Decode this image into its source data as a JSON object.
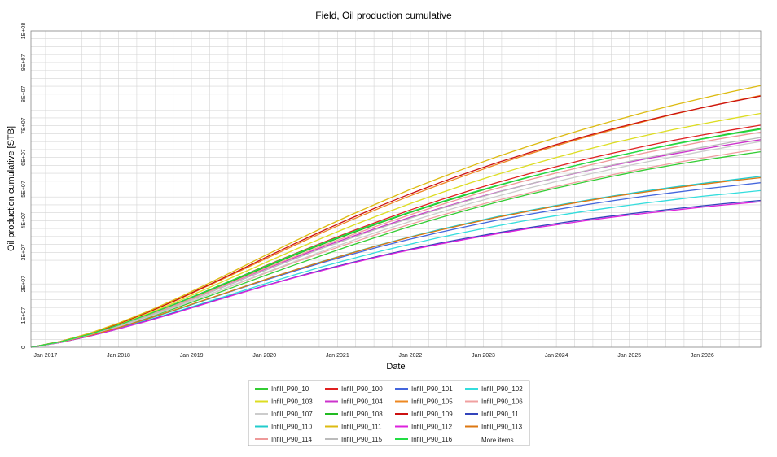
{
  "chart_data": {
    "type": "line",
    "title": "Field, Oil production cumulative",
    "xlabel": "Date",
    "ylabel": "Oil production cumulative [STB]",
    "x_range": [
      2016.8,
      2026.8
    ],
    "x_ticks": [
      "Jan 2017",
      "Jan 2018",
      "Jan 2019",
      "Jan 2020",
      "Jan 2021",
      "Jan 2022",
      "Jan 2023",
      "Jan 2024",
      "Jan 2025",
      "Jan 2026"
    ],
    "ylim": [
      0,
      100000000
    ],
    "y_ticks": [
      "0",
      "1E+07",
      "2E+07",
      "3E+07",
      "4E+07",
      "5E+07",
      "6E+07",
      "7E+07",
      "8E+07",
      "9E+07",
      "1E+08"
    ],
    "grid": true,
    "legend_position": "bottom-center",
    "legend_more": "More items...",
    "x": [
      2016.8,
      2017.2,
      2017.6,
      2018.0,
      2018.4,
      2018.8,
      2019.2,
      2019.6,
      2020.0,
      2020.4,
      2020.8,
      2021.2,
      2021.6,
      2022.0,
      2022.4,
      2022.8,
      2023.2,
      2023.6,
      2024.0,
      2024.4,
      2024.8,
      2025.2,
      2025.6,
      2026.0,
      2026.4,
      2026.8
    ],
    "series": [
      {
        "name": "Infill_P90_10",
        "color": "#33cc33",
        "values": [
          0,
          1.6,
          3.8,
          6.4,
          9.3,
          12.5,
          15.8,
          19.2,
          22.6,
          25.9,
          29.1,
          32.3,
          35.3,
          38.2,
          40.9,
          43.5,
          45.9,
          48.2,
          50.3,
          52.3,
          54.2,
          56.0,
          57.6,
          59.1,
          60.5,
          61.8
        ]
      },
      {
        "name": "Infill_P90_100",
        "color": "#e02020",
        "values": [
          0,
          1.7,
          4.1,
          7.0,
          10.3,
          13.9,
          17.7,
          21.6,
          25.6,
          29.4,
          33.1,
          36.7,
          40.1,
          43.4,
          46.5,
          49.4,
          52.1,
          54.7,
          57.1,
          59.4,
          61.5,
          63.5,
          65.4,
          67.1,
          68.7,
          70.2
        ]
      },
      {
        "name": "Infill_P90_101",
        "color": "#4466dd",
        "values": [
          0,
          1.6,
          3.7,
          6.2,
          9.0,
          11.9,
          15.0,
          18.1,
          21.1,
          24.0,
          26.8,
          29.4,
          31.9,
          34.2,
          36.3,
          38.3,
          40.2,
          41.9,
          43.5,
          45.0,
          46.4,
          47.7,
          48.9,
          50.0,
          51.0,
          52.0
        ]
      },
      {
        "name": "Infill_P90_102",
        "color": "#33dddd",
        "values": [
          0,
          1.5,
          3.5,
          5.9,
          8.5,
          11.3,
          14.2,
          17.1,
          20.0,
          22.8,
          25.5,
          28.0,
          30.4,
          32.6,
          34.7,
          36.6,
          38.4,
          40.1,
          41.6,
          43.0,
          44.3,
          45.5,
          46.6,
          47.7,
          48.6,
          49.5
        ]
      },
      {
        "name": "Infill_P90_103",
        "color": "#dddd22",
        "values": [
          0,
          1.7,
          4.2,
          7.2,
          10.6,
          14.4,
          18.4,
          22.5,
          26.6,
          30.7,
          34.6,
          38.4,
          42.0,
          45.4,
          48.7,
          51.8,
          54.7,
          57.4,
          60.0,
          62.4,
          64.7,
          66.8,
          68.8,
          70.6,
          72.3,
          73.9
        ]
      },
      {
        "name": "Infill_P90_104",
        "color": "#cc33cc",
        "values": [
          0,
          1.7,
          4.0,
          6.8,
          10.0,
          13.5,
          17.2,
          20.9,
          24.6,
          28.2,
          31.7,
          35.0,
          38.1,
          41.1,
          43.9,
          46.6,
          49.1,
          51.4,
          53.6,
          55.7,
          57.6,
          59.4,
          61.1,
          62.7,
          64.2,
          65.6
        ]
      },
      {
        "name": "Infill_P90_105",
        "color": "#ee8822",
        "values": [
          0,
          1.8,
          4.3,
          7.4,
          11.0,
          14.9,
          19.1,
          23.4,
          27.8,
          32.1,
          36.3,
          40.3,
          44.2,
          47.9,
          51.4,
          54.7,
          57.9,
          60.9,
          63.7,
          66.4,
          68.9,
          71.3,
          73.6,
          75.7,
          77.7,
          79.6
        ]
      },
      {
        "name": "Infill_P90_106",
        "color": "#f0a0a0",
        "values": [
          0,
          1.6,
          3.9,
          6.6,
          9.6,
          12.9,
          16.3,
          19.8,
          23.3,
          26.7,
          30.0,
          33.1,
          36.1,
          38.9,
          41.6,
          44.1,
          46.5,
          48.7,
          50.8,
          52.8,
          54.7,
          56.5,
          58.2,
          59.8,
          61.3,
          62.7
        ]
      },
      {
        "name": "Infill_P90_107",
        "color": "#cccccc",
        "values": [
          0,
          1.6,
          3.8,
          6.5,
          9.5,
          12.8,
          16.3,
          19.9,
          23.5,
          27.0,
          30.4,
          33.7,
          36.8,
          39.8,
          42.6,
          45.3,
          47.8,
          50.2,
          52.4,
          54.5,
          56.5,
          58.4,
          60.2,
          61.9,
          63.5,
          65.0
        ]
      },
      {
        "name": "Infill_P90_108",
        "color": "#22bb22",
        "values": [
          0,
          1.7,
          4.0,
          6.9,
          10.1,
          13.7,
          17.5,
          21.3,
          25.2,
          29.0,
          32.6,
          36.1,
          39.4,
          42.6,
          45.6,
          48.4,
          51.1,
          53.6,
          56.0,
          58.2,
          60.3,
          62.3,
          64.2,
          65.9,
          67.6,
          69.1
        ]
      },
      {
        "name": "Infill_P90_109",
        "color": "#cc1111",
        "values": [
          0,
          1.8,
          4.3,
          7.4,
          11.0,
          15.0,
          19.3,
          23.7,
          28.2,
          32.6,
          36.8,
          40.9,
          44.8,
          48.5,
          52.0,
          55.3,
          58.4,
          61.3,
          64.1,
          66.7,
          69.2,
          71.5,
          73.7,
          75.7,
          77.6,
          79.4
        ]
      },
      {
        "name": "Infill_P90_11",
        "color": "#3344bb",
        "values": [
          0,
          1.5,
          3.5,
          5.8,
          8.4,
          11.1,
          13.9,
          16.7,
          19.4,
          22.0,
          24.5,
          26.8,
          29.0,
          31.0,
          32.9,
          34.6,
          36.2,
          37.7,
          39.1,
          40.4,
          41.6,
          42.7,
          43.7,
          44.7,
          45.6,
          46.4
        ]
      },
      {
        "name": "Infill_P90_110",
        "color": "#22cccc",
        "values": [
          0,
          1.5,
          3.6,
          6.1,
          8.9,
          11.9,
          15.0,
          18.2,
          21.3,
          24.3,
          27.2,
          29.9,
          32.5,
          34.9,
          37.2,
          39.3,
          41.3,
          43.1,
          44.8,
          46.4,
          47.9,
          49.3,
          50.6,
          51.8,
          52.9,
          54.0
        ]
      },
      {
        "name": "Infill_P90_111",
        "color": "#ddbb11",
        "values": [
          0,
          1.8,
          4.4,
          7.6,
          11.3,
          15.4,
          19.8,
          24.3,
          28.9,
          33.4,
          37.8,
          42.0,
          46.0,
          49.9,
          53.5,
          57.0,
          60.3,
          63.4,
          66.3,
          69.1,
          71.7,
          74.2,
          76.5,
          78.7,
          80.8,
          82.7
        ]
      },
      {
        "name": "Infill_P90_112",
        "color": "#dd22dd",
        "values": [
          0,
          1.5,
          3.5,
          5.8,
          8.3,
          11.0,
          13.8,
          16.6,
          19.3,
          21.9,
          24.3,
          26.6,
          28.8,
          30.8,
          32.6,
          34.3,
          35.9,
          37.4,
          38.7,
          40.0,
          41.2,
          42.3,
          43.3,
          44.3,
          45.2,
          46.0
        ]
      },
      {
        "name": "Infill_P90_113",
        "color": "#dd7711",
        "values": [
          0,
          1.6,
          3.7,
          6.2,
          9.0,
          12.0,
          15.1,
          18.2,
          21.3,
          24.3,
          27.1,
          29.8,
          32.4,
          34.8,
          37.0,
          39.1,
          41.1,
          42.9,
          44.6,
          46.2,
          47.7,
          49.0,
          50.3,
          51.5,
          52.6,
          53.6
        ]
      },
      {
        "name": "Infill_P90_114",
        "color": "#ee9999",
        "values": [
          0,
          1.7,
          4.0,
          6.8,
          10.0,
          13.5,
          17.2,
          21.0,
          24.8,
          28.5,
          32.1,
          35.5,
          38.8,
          41.9,
          44.9,
          47.7,
          50.3,
          52.8,
          55.1,
          57.3,
          59.4,
          61.4,
          63.2,
          64.9,
          66.5,
          68.0
        ]
      },
      {
        "name": "Infill_P90_115",
        "color": "#bbbbbb",
        "values": [
          0,
          1.6,
          3.9,
          6.7,
          9.8,
          13.2,
          16.8,
          20.5,
          24.2,
          27.8,
          31.3,
          34.6,
          37.8,
          40.8,
          43.7,
          46.4,
          49.0,
          51.4,
          53.7,
          55.8,
          57.8,
          59.7,
          61.5,
          63.2,
          64.8,
          66.3
        ]
      },
      {
        "name": "Infill_P90_116",
        "color": "#22dd44",
        "values": [
          0,
          1.7,
          4.1,
          7.0,
          10.3,
          13.9,
          17.7,
          21.6,
          25.5,
          29.3,
          32.9,
          36.4,
          39.7,
          42.8,
          45.8,
          48.6,
          51.2,
          53.7,
          56.0,
          58.2,
          60.3,
          62.3,
          64.1,
          65.8,
          67.4,
          68.9
        ]
      }
    ]
  }
}
